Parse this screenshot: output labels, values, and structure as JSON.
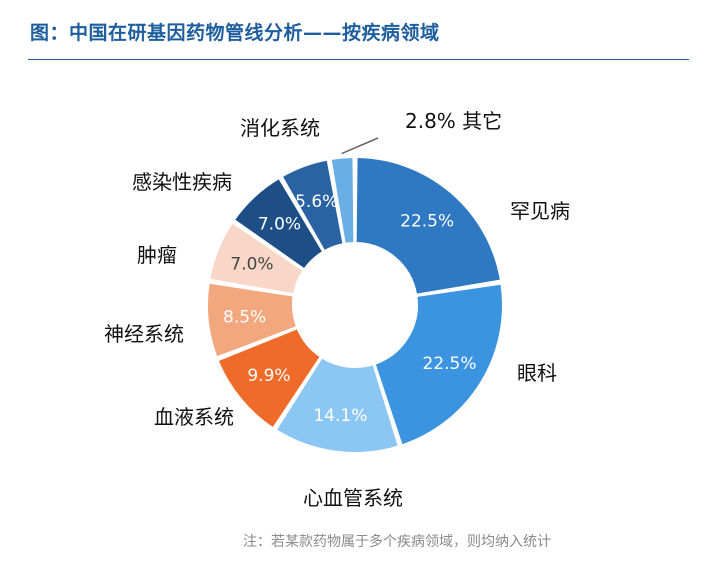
{
  "title": "图：中国在研基因药物管线分析——按疾病领域",
  "note": "注：若某款药物属于多个疾病领域，则均纳入统计",
  "chart_data": {
    "type": "pie",
    "style": "donut",
    "unit": "%",
    "categories": [
      "罕见病",
      "眼科",
      "心血管系统",
      "血液系统",
      "神经系统",
      "肿瘤",
      "感染性疾病",
      "消化系统",
      "其它"
    ],
    "values": [
      22.5,
      22.5,
      14.1,
      9.9,
      8.5,
      7.0,
      7.0,
      5.6,
      2.8
    ],
    "value_labels": [
      "22.5%",
      "22.5%",
      "14.1%",
      "9.9%",
      "8.5%",
      "7.0%",
      "7.0%",
      "5.6%",
      "2.8%"
    ],
    "colors": [
      "#2f78c2",
      "#3c94e0",
      "#8cc6f2",
      "#f06a2a",
      "#f2a77e",
      "#f8d6c8",
      "#1d4f86",
      "#2a63a3",
      "#6aaee6"
    ],
    "label_text_dark": [
      false,
      false,
      false,
      false,
      false,
      true,
      false,
      false,
      false
    ]
  }
}
